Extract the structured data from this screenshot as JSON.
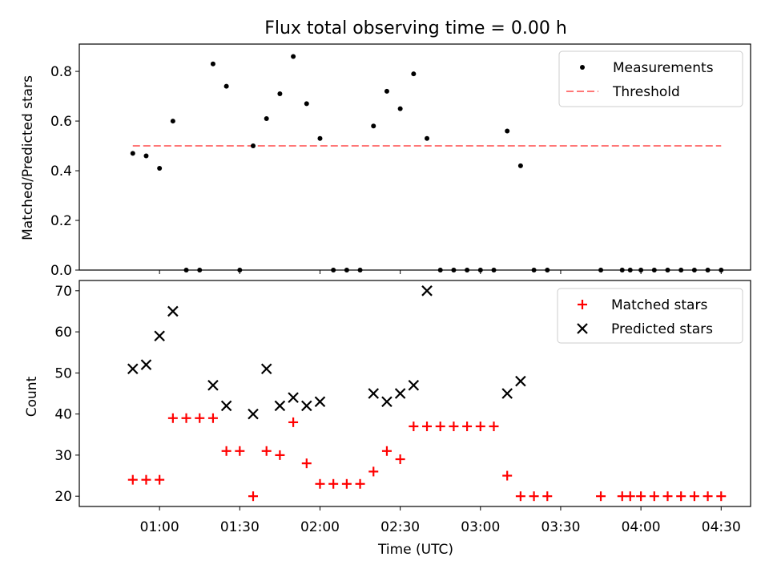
{
  "chart_data": [
    {
      "type": "scatter",
      "title": "Flux total observing time = 0.00 h",
      "ylabel": "Matched/Predicted stars",
      "xlabel": "",
      "ylim": [
        0,
        0.91
      ],
      "yticks": [
        "0.0",
        "0.2",
        "0.4",
        "0.6",
        "0.8"
      ],
      "ytick_values": [
        0,
        0.2,
        0.4,
        0.6,
        0.8
      ],
      "legend_position": "top-right",
      "series": [
        {
          "name": "Measurements",
          "kind": "points",
          "color": "#000000",
          "x": [
            "00:50",
            "00:55",
            "01:00",
            "01:05",
            "01:10",
            "01:15",
            "01:20",
            "01:25",
            "01:30",
            "01:35",
            "01:40",
            "01:45",
            "01:50",
            "01:55",
            "02:00",
            "02:05",
            "02:10",
            "02:15",
            "02:20",
            "02:25",
            "02:30",
            "02:35",
            "02:40",
            "02:45",
            "02:50",
            "02:55",
            "03:00",
            "03:05",
            "03:10",
            "03:15",
            "03:20",
            "03:25",
            "03:45",
            "03:53",
            "03:56",
            "04:00",
            "04:05",
            "04:10",
            "04:15",
            "04:20",
            "04:25",
            "04:30"
          ],
          "y": [
            0.47,
            0.46,
            0.41,
            0.6,
            0.0,
            0.0,
            0.83,
            0.74,
            0.0,
            0.5,
            0.61,
            0.71,
            0.86,
            0.67,
            0.53,
            0.0,
            0.0,
            0.0,
            0.58,
            0.72,
            0.65,
            0.79,
            0.53,
            0.0,
            0.0,
            0.0,
            0.0,
            0.0,
            0.56,
            0.42,
            0.0,
            0.0,
            0.0,
            0.0,
            0.0,
            0.0,
            0.0,
            0.0,
            0.0,
            0.0,
            0.0,
            0.0
          ]
        },
        {
          "name": "Threshold",
          "kind": "dashed-line",
          "color": "#ff7777",
          "x": [
            "00:50",
            "04:30"
          ],
          "y": [
            0.5,
            0.5
          ]
        }
      ]
    },
    {
      "type": "scatter",
      "title": "",
      "ylabel": "Count",
      "xlabel": "Time (UTC)",
      "ylim": [
        17.5,
        72.5
      ],
      "yticks": [
        "20",
        "30",
        "40",
        "50",
        "60",
        "70"
      ],
      "ytick_values": [
        20,
        30,
        40,
        50,
        60,
        70
      ],
      "xticks": [
        "01:00",
        "01:30",
        "02:00",
        "02:30",
        "03:00",
        "03:30",
        "04:00",
        "04:30"
      ],
      "xtick_values": [
        "01:00",
        "01:30",
        "02:00",
        "02:30",
        "03:00",
        "03:30",
        "04:00",
        "04:30"
      ],
      "xlim": [
        "00:30",
        "04:41"
      ],
      "legend_position": "top-right",
      "series": [
        {
          "name": "Matched stars",
          "marker": "plus",
          "color": "#ff0000",
          "x": [
            "00:50",
            "00:55",
            "01:00",
            "01:05",
            "01:10",
            "01:15",
            "01:20",
            "01:25",
            "01:30",
            "01:35",
            "01:40",
            "01:45",
            "01:50",
            "01:55",
            "02:00",
            "02:05",
            "02:10",
            "02:15",
            "02:20",
            "02:25",
            "02:30",
            "02:35",
            "02:40",
            "02:45",
            "02:50",
            "02:55",
            "03:00",
            "03:05",
            "03:10",
            "03:15",
            "03:20",
            "03:25",
            "03:45",
            "03:53",
            "03:56",
            "04:00",
            "04:05",
            "04:10",
            "04:15",
            "04:20",
            "04:25",
            "04:30"
          ],
          "y": [
            24,
            24,
            24,
            39,
            39,
            39,
            39,
            31,
            31,
            20,
            31,
            30,
            38,
            28,
            23,
            23,
            23,
            23,
            26,
            31,
            29,
            37,
            37,
            37,
            37,
            37,
            37,
            37,
            25,
            20,
            20,
            20,
            20,
            20,
            20,
            20,
            20,
            20,
            20,
            20,
            20,
            20
          ]
        },
        {
          "name": "Predicted stars",
          "marker": "x",
          "color": "#000000",
          "x": [
            "00:50",
            "00:55",
            "01:00",
            "01:05",
            "01:20",
            "01:25",
            "01:35",
            "01:40",
            "01:45",
            "01:50",
            "01:55",
            "02:00",
            "02:20",
            "02:25",
            "02:30",
            "02:35",
            "02:40",
            "03:10",
            "03:15"
          ],
          "y": [
            51,
            52,
            59,
            65,
            47,
            42,
            40,
            51,
            42,
            44,
            42,
            43,
            45,
            43,
            45,
            47,
            70,
            45,
            48
          ]
        }
      ]
    }
  ]
}
